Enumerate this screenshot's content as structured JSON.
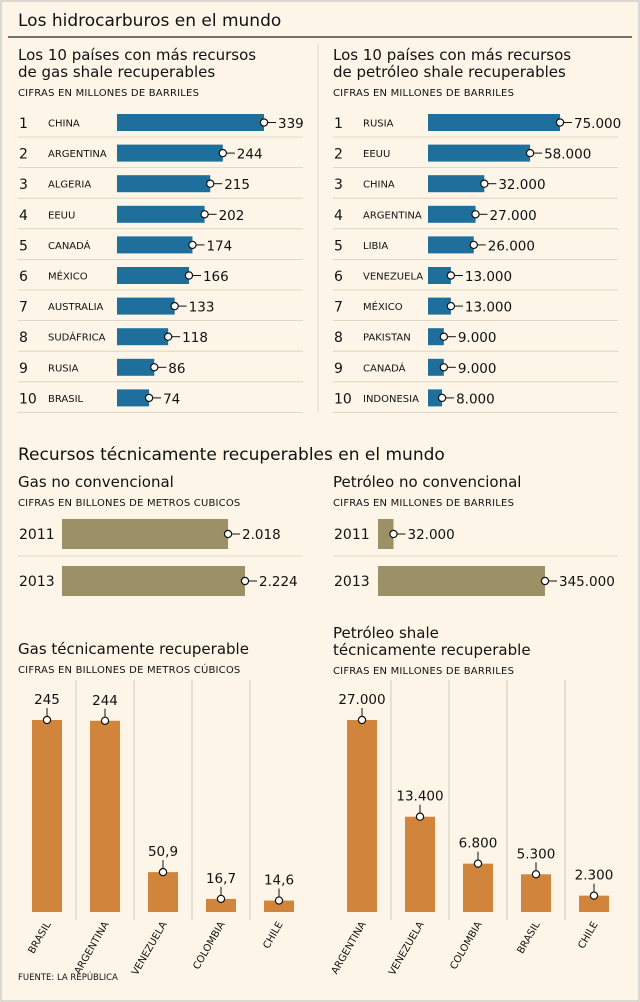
{
  "title": "Los hidrocarburos en el mundo",
  "source": "FUENTE: LA REPÚBLICA",
  "colors": {
    "background": "#fdf6e8",
    "blue": "#1f6f9c",
    "olive": "#9c9066",
    "orange": "#d1853c",
    "rule": "#222222"
  },
  "section2_title": "Recursos técnicamente recuperables en el mundo",
  "chart_data": [
    {
      "id": "gas-shale-top10",
      "type": "bar",
      "orientation": "horizontal",
      "title_lines": [
        "Los 10 países con más recursos",
        "de gas shale recuperables"
      ],
      "units": "CIFRAS EN MILLONES DE BARRILES",
      "ranks": [
        "1",
        "2",
        "3",
        "4",
        "5",
        "6",
        "7",
        "8",
        "9",
        "10"
      ],
      "categories": [
        "CHINA",
        "ARGENTINA",
        "ALGERIA",
        "EEUU",
        "CANADÁ",
        "MÉXICO",
        "AUSTRALIA",
        "SUDÁFRICA",
        "RUSIA",
        "BRASIL"
      ],
      "values": [
        339,
        244,
        215,
        202,
        174,
        166,
        133,
        118,
        86,
        74
      ],
      "labels": [
        "339",
        "244",
        "215",
        "202",
        "174",
        "166",
        "133",
        "118",
        "86",
        "74"
      ],
      "xlim": [
        0,
        339
      ]
    },
    {
      "id": "oil-shale-top10",
      "type": "bar",
      "orientation": "horizontal",
      "title_lines": [
        "Los 10 países con más recursos",
        "de petróleo shale recuperables"
      ],
      "units": "CIFRAS EN MILLONES DE BARRILES",
      "ranks": [
        "1",
        "2",
        "3",
        "4",
        "5",
        "6",
        "7",
        "8",
        "9",
        "10"
      ],
      "categories": [
        "RUSIA",
        "EEUU",
        "CHINA",
        "ARGENTINA",
        "LIBIA",
        "VENEZUELA",
        "MÉXICO",
        "PAKISTAN",
        "CANADÁ",
        "INDONESIA"
      ],
      "values": [
        75000,
        58000,
        32000,
        27000,
        26000,
        13000,
        13000,
        9000,
        9000,
        8000
      ],
      "labels": [
        "75.000",
        "58.000",
        "32.000",
        "27.000",
        "26.000",
        "13.000",
        "13.000",
        "9.000",
        "9.000",
        "8.000"
      ],
      "xlim": [
        0,
        75000
      ]
    },
    {
      "id": "gas-no-convencional",
      "type": "bar",
      "orientation": "horizontal",
      "title_lines": [
        "Gas no convencional"
      ],
      "units": "CIFRAS EN BILLONES DE METROS CUBICOS",
      "categories": [
        "2011",
        "2013"
      ],
      "values": [
        2018,
        2224
      ],
      "labels": [
        "2.018",
        "2.224"
      ],
      "xlim": [
        0,
        2224
      ]
    },
    {
      "id": "petroleo-no-convencional",
      "type": "bar",
      "orientation": "horizontal",
      "title_lines": [
        "Petróleo no convencional"
      ],
      "units": "CIFRAS EN MILLONES DE BARRILES",
      "categories": [
        "2011",
        "2013"
      ],
      "values": [
        32000,
        345000
      ],
      "labels": [
        "32.000",
        "345.000"
      ],
      "xlim": [
        0,
        345000
      ]
    },
    {
      "id": "gas-tecnicamente-recuperable",
      "type": "bar",
      "orientation": "vertical",
      "title_lines": [
        "Gas técnicamente recuperable"
      ],
      "units": "CIFRAS EN BILLONES DE METROS CÚBICOS",
      "categories": [
        "BRASIL",
        "ARGENTINA",
        "VENEZUELA",
        "COLOMBIA",
        "CHILE"
      ],
      "values": [
        245,
        244,
        50.9,
        16.7,
        14.6
      ],
      "labels": [
        "245",
        "244",
        "50,9",
        "16,7",
        "14,6"
      ],
      "ylim": [
        0,
        245
      ]
    },
    {
      "id": "petroleo-shale-tecnicamente-recuperable",
      "type": "bar",
      "orientation": "vertical",
      "title_lines": [
        "Petróleo shale",
        "técnicamente recuperable"
      ],
      "units": "CIFRAS EN MILLONES DE BARRILES",
      "categories": [
        "ARGENTINA",
        "VENEZUELA",
        "COLOMBIA",
        "BRASIL",
        "CHILE"
      ],
      "values": [
        27000,
        13400,
        6800,
        5300,
        2300
      ],
      "labels": [
        "27.000",
        "13.400",
        "6.800",
        "5.300",
        "2.300"
      ],
      "ylim": [
        0,
        27000
      ]
    }
  ]
}
